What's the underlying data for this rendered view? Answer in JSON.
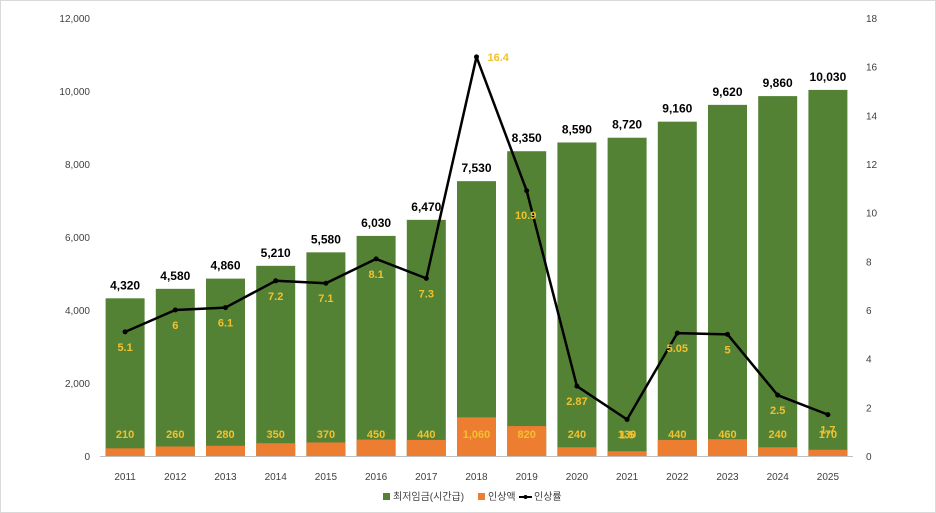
{
  "chart_data": {
    "type": "bar",
    "categories": [
      "2011",
      "2012",
      "2013",
      "2014",
      "2015",
      "2016",
      "2017",
      "2018",
      "2019",
      "2020",
      "2021",
      "2022",
      "2023",
      "2024",
      "2025"
    ],
    "series": [
      {
        "name": "최저임금(시간급)",
        "kind": "bar",
        "axis": "left",
        "color": "#548235",
        "values": [
          4320,
          4580,
          4860,
          5210,
          5580,
          6030,
          6470,
          7530,
          8350,
          8590,
          8720,
          9160,
          9620,
          9860,
          10030
        ],
        "labels": [
          "4,320",
          "4,580",
          "4,860",
          "5,210",
          "5,580",
          "6,030",
          "6,470",
          "7,530",
          "8,350",
          "8,590",
          "8,720",
          "9,160",
          "9,620",
          "9,860",
          "10,030"
        ]
      },
      {
        "name": "인상액",
        "kind": "bar",
        "axis": "left",
        "color": "#ed7d31",
        "values": [
          210,
          260,
          280,
          350,
          370,
          450,
          440,
          1060,
          820,
          240,
          130,
          440,
          460,
          240,
          170
        ],
        "labels": [
          "210",
          "260",
          "280",
          "350",
          "370",
          "450",
          "440",
          "1,060",
          "820",
          "240",
          "130",
          "440",
          "460",
          "240",
          "170"
        ]
      },
      {
        "name": "인상률",
        "kind": "line",
        "axis": "right",
        "color": "#000000",
        "values": [
          5.1,
          6,
          6.1,
          7.2,
          7.1,
          8.1,
          7.3,
          16.4,
          10.9,
          2.87,
          1.5,
          5.05,
          5,
          2.5,
          1.7
        ],
        "labels": [
          "5.1",
          "6",
          "6.1",
          "7.2",
          "7.1",
          "8.1",
          "7.3",
          "16.4",
          "10.9",
          "2.87",
          "1.5",
          "5.05",
          "5",
          "2.5",
          "1.7"
        ]
      }
    ],
    "y_left": {
      "ylim": [
        0,
        12000
      ],
      "ticks": [
        "0",
        "2,000",
        "4,000",
        "6,000",
        "8,000",
        "10,000",
        "12,000"
      ]
    },
    "y_right": {
      "ylim": [
        0,
        18
      ],
      "ticks": [
        "0",
        "2",
        "4",
        "6",
        "8",
        "10",
        "12",
        "14",
        "16",
        "18"
      ]
    },
    "grid": false,
    "legend_position": "bottom",
    "colors": {
      "bar_main": "#548235",
      "bar_increase": "#ed7d31",
      "line": "#000000",
      "label_yellow": "#f2c12e"
    }
  }
}
